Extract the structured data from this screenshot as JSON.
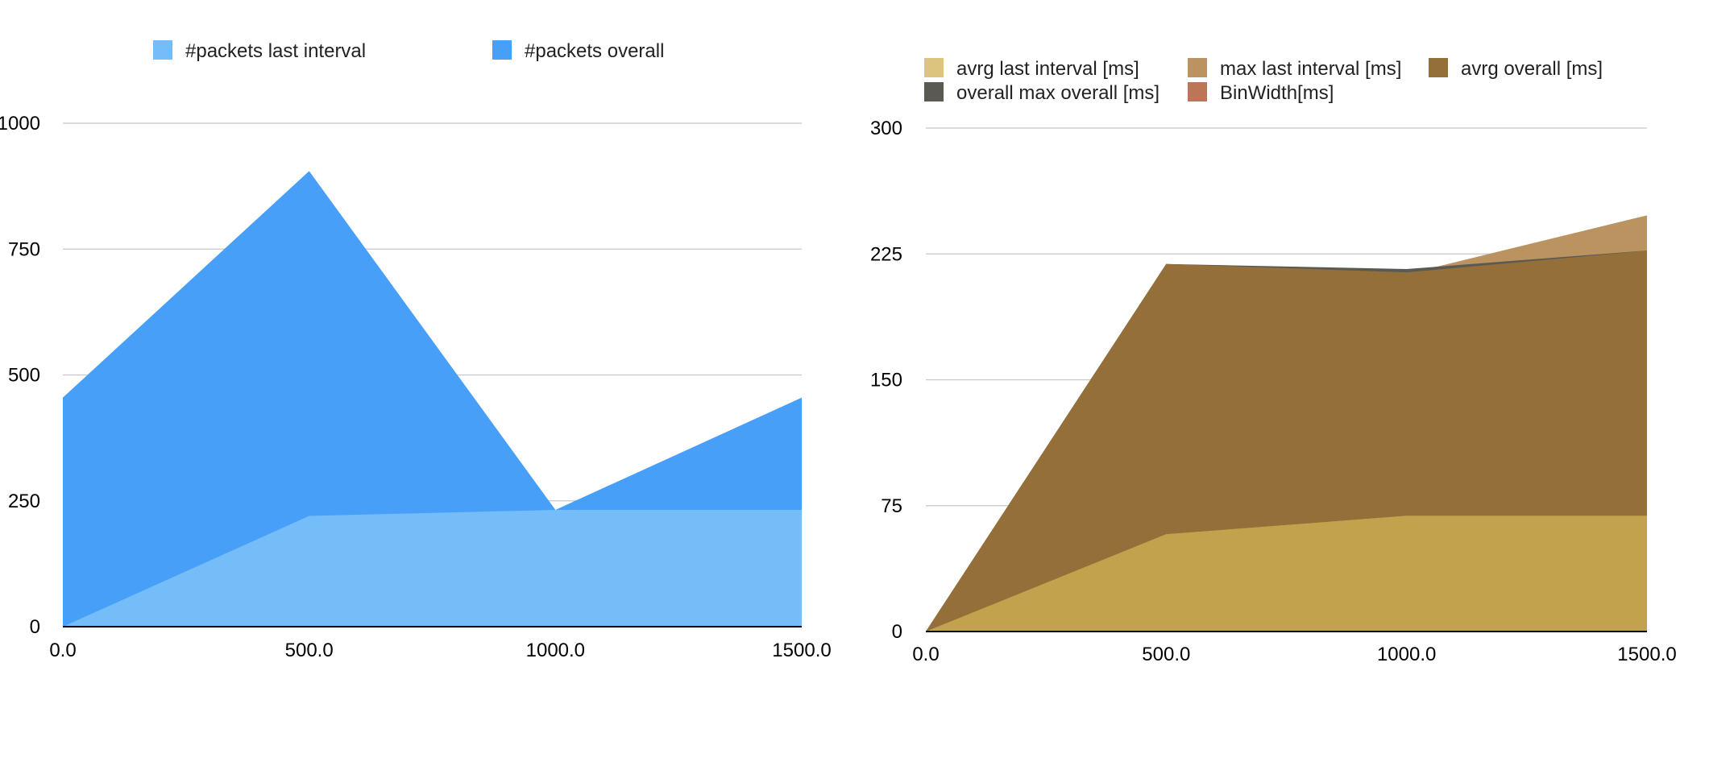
{
  "chart_data": [
    {
      "type": "area",
      "title": "",
      "xlabel": "",
      "ylabel": "",
      "x": [
        0,
        500,
        1000,
        1500
      ],
      "x_tick_labels": [
        "0.0",
        "500.0",
        "1000.0",
        "1500.0"
      ],
      "y_ticks": [
        0,
        250,
        500,
        750,
        1000
      ],
      "y_tick_labels": [
        "0",
        "250",
        "500",
        "750",
        "1000"
      ],
      "ylim": [
        0,
        1000
      ],
      "grid": true,
      "legend_position": "top",
      "series": [
        {
          "name": "#packets last interval",
          "color": "#74bdf8",
          "values": [
            0,
            220,
            232,
            232
          ]
        },
        {
          "name": "#packets overall",
          "color": "#479ff8",
          "values": [
            455,
            905,
            232,
            455
          ]
        }
      ],
      "draw_order": [
        "#packets overall",
        "#packets last interval"
      ]
    },
    {
      "type": "area",
      "title": "",
      "xlabel": "",
      "ylabel": "",
      "x": [
        0,
        500,
        1000,
        1500
      ],
      "x_tick_labels": [
        "0.0",
        "500.0",
        "1000.0",
        "1500.0"
      ],
      "y_ticks": [
        0,
        75,
        150,
        225,
        300
      ],
      "y_tick_labels": [
        "0",
        "75",
        "150",
        "225",
        "300"
      ],
      "ylim": [
        0,
        300
      ],
      "grid": true,
      "legend_position": "top",
      "series": [
        {
          "name": "avrg last interval [ms]",
          "color": "#c3a24e",
          "legend_color": "#dcc47f",
          "values": [
            0,
            58,
            69,
            69
          ]
        },
        {
          "name": "max last interval [ms]",
          "color": "#ba9360",
          "values": [
            0,
            219,
            213,
            248
          ]
        },
        {
          "name": "avrg overall [ms]",
          "color": "#946f39",
          "values": [
            0,
            219,
            214,
            227
          ]
        },
        {
          "name": "overall max overall [ms]",
          "color": "#5a5a52",
          "values": [
            0,
            219,
            216,
            227
          ]
        },
        {
          "name": "BinWidth[ms]",
          "color": "#bc7657",
          "values": [
            0,
            0,
            0,
            0
          ]
        }
      ],
      "draw_order": [
        "max last interval [ms]",
        "overall max overall [ms]",
        "avrg overall [ms]",
        "avrg last interval [ms]"
      ]
    }
  ]
}
